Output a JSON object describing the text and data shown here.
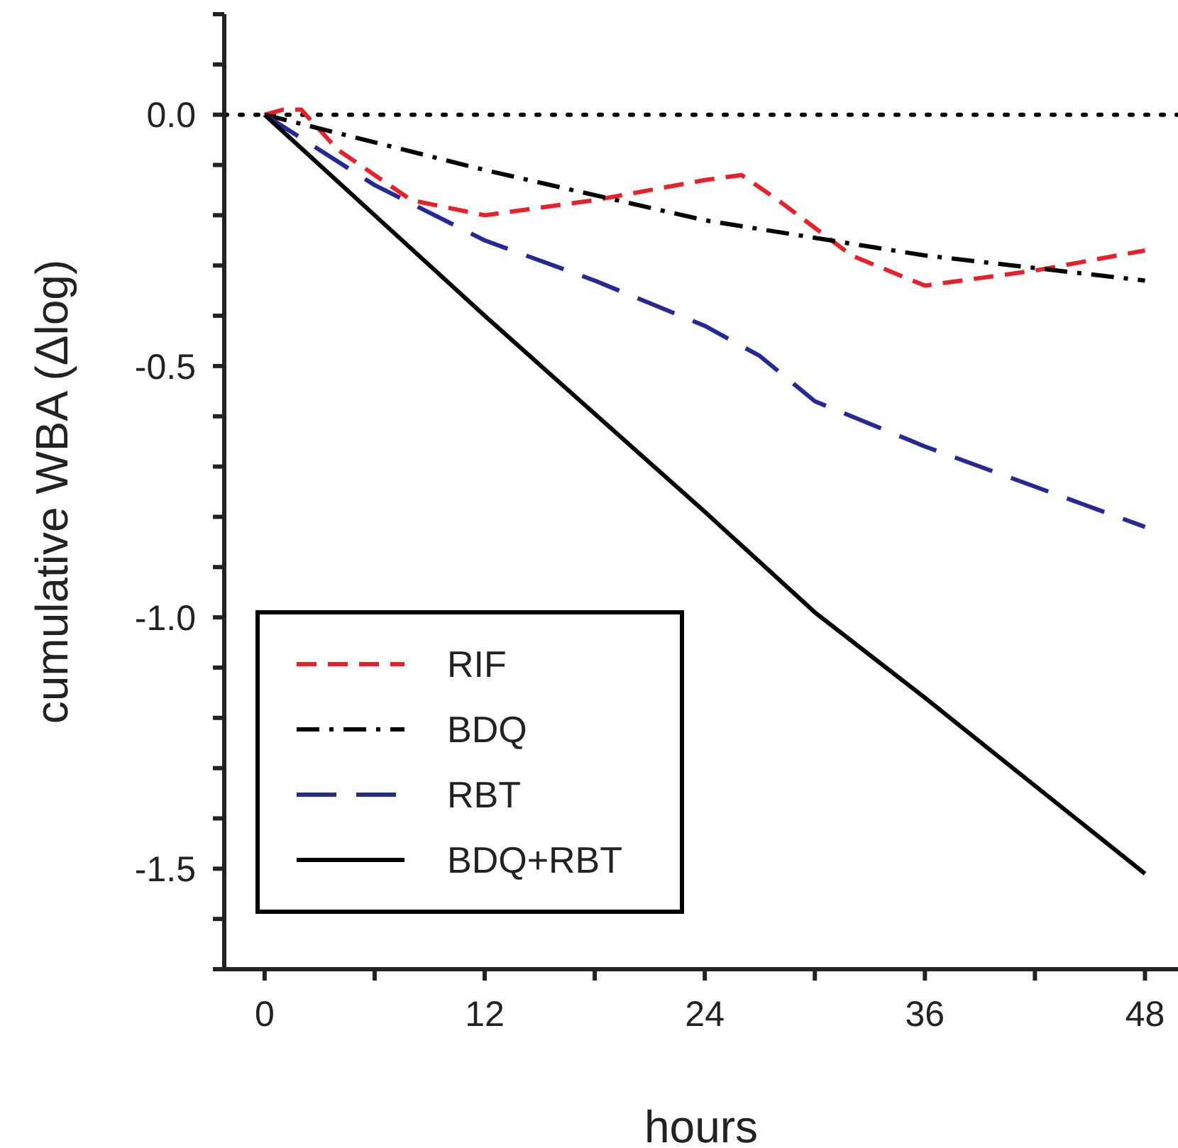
{
  "chart_data": {
    "type": "line",
    "xlabel": "hours",
    "ylabel": "cumulative WBA (Δlog)",
    "xlim": [
      -2.2,
      49.8
    ],
    "ylim": [
      -1.7,
      0.2
    ],
    "xticks": [
      0,
      {
        "value": 6,
        "label": null
      },
      12,
      {
        "value": 18,
        "label": null
      },
      24,
      {
        "value": 30,
        "label": null
      },
      36,
      {
        "value": 42,
        "label": null
      },
      48
    ],
    "yticks": [
      {
        "value": -1.7,
        "label": null
      },
      {
        "value": -1.6,
        "label": null
      },
      {
        "value": -1.5,
        "label": "-1.5"
      },
      {
        "value": -1.4,
        "label": null
      },
      {
        "value": -1.3,
        "label": null
      },
      {
        "value": -1.2,
        "label": null
      },
      {
        "value": -1.1,
        "label": null
      },
      {
        "value": -1.0,
        "label": "-1.0"
      },
      {
        "value": -0.9,
        "label": null
      },
      {
        "value": -0.8,
        "label": null
      },
      {
        "value": -0.7,
        "label": null
      },
      {
        "value": -0.6,
        "label": null
      },
      {
        "value": -0.5,
        "label": "-0.5"
      },
      {
        "value": -0.4,
        "label": null
      },
      {
        "value": -0.3,
        "label": null
      },
      {
        "value": -0.2,
        "label": null
      },
      {
        "value": -0.1,
        "label": null
      },
      {
        "value": 0,
        "label": "0.0"
      },
      {
        "value": 0.1,
        "label": null
      },
      {
        "value": 0.2,
        "label": null
      }
    ],
    "grid": false,
    "legend": "bottom left",
    "marker": "none",
    "ref_lines": [
      {
        "axis": "y",
        "value": 0,
        "color": "#000000",
        "line_style": "dotted"
      }
    ],
    "series": [
      {
        "name": "RIF",
        "color": "#e8202a",
        "line_style": "dashed",
        "x": [
          0,
          1,
          2,
          4,
          8,
          12,
          18,
          24,
          26,
          28,
          32,
          36,
          42,
          48
        ],
        "values": [
          0,
          0.01,
          0.01,
          -0.07,
          -0.17,
          -0.2,
          -0.17,
          -0.13,
          -0.12,
          -0.17,
          -0.28,
          -0.34,
          -0.31,
          -0.27
        ]
      },
      {
        "name": "BDQ",
        "color": "#000000",
        "line_style": "dashdot",
        "x": [
          0,
          12,
          24,
          36,
          48
        ],
        "values": [
          0,
          -0.11,
          -0.21,
          -0.28,
          -0.33
        ]
      },
      {
        "name": "RBT",
        "color": "#262896",
        "line_style": "longdash",
        "x": [
          0,
          6,
          12,
          18,
          24,
          27,
          30,
          36,
          48
        ],
        "values": [
          0,
          -0.14,
          -0.25,
          -0.33,
          -0.42,
          -0.48,
          -0.57,
          -0.66,
          -0.82
        ]
      },
      {
        "name": "BDQ+RBT",
        "color": "#000000",
        "line_style": "solid",
        "x": [
          0,
          6,
          12,
          24,
          30,
          36,
          48
        ],
        "values": [
          0,
          -0.2,
          -0.4,
          -0.79,
          -0.99,
          -1.16,
          -1.51
        ]
      }
    ]
  }
}
